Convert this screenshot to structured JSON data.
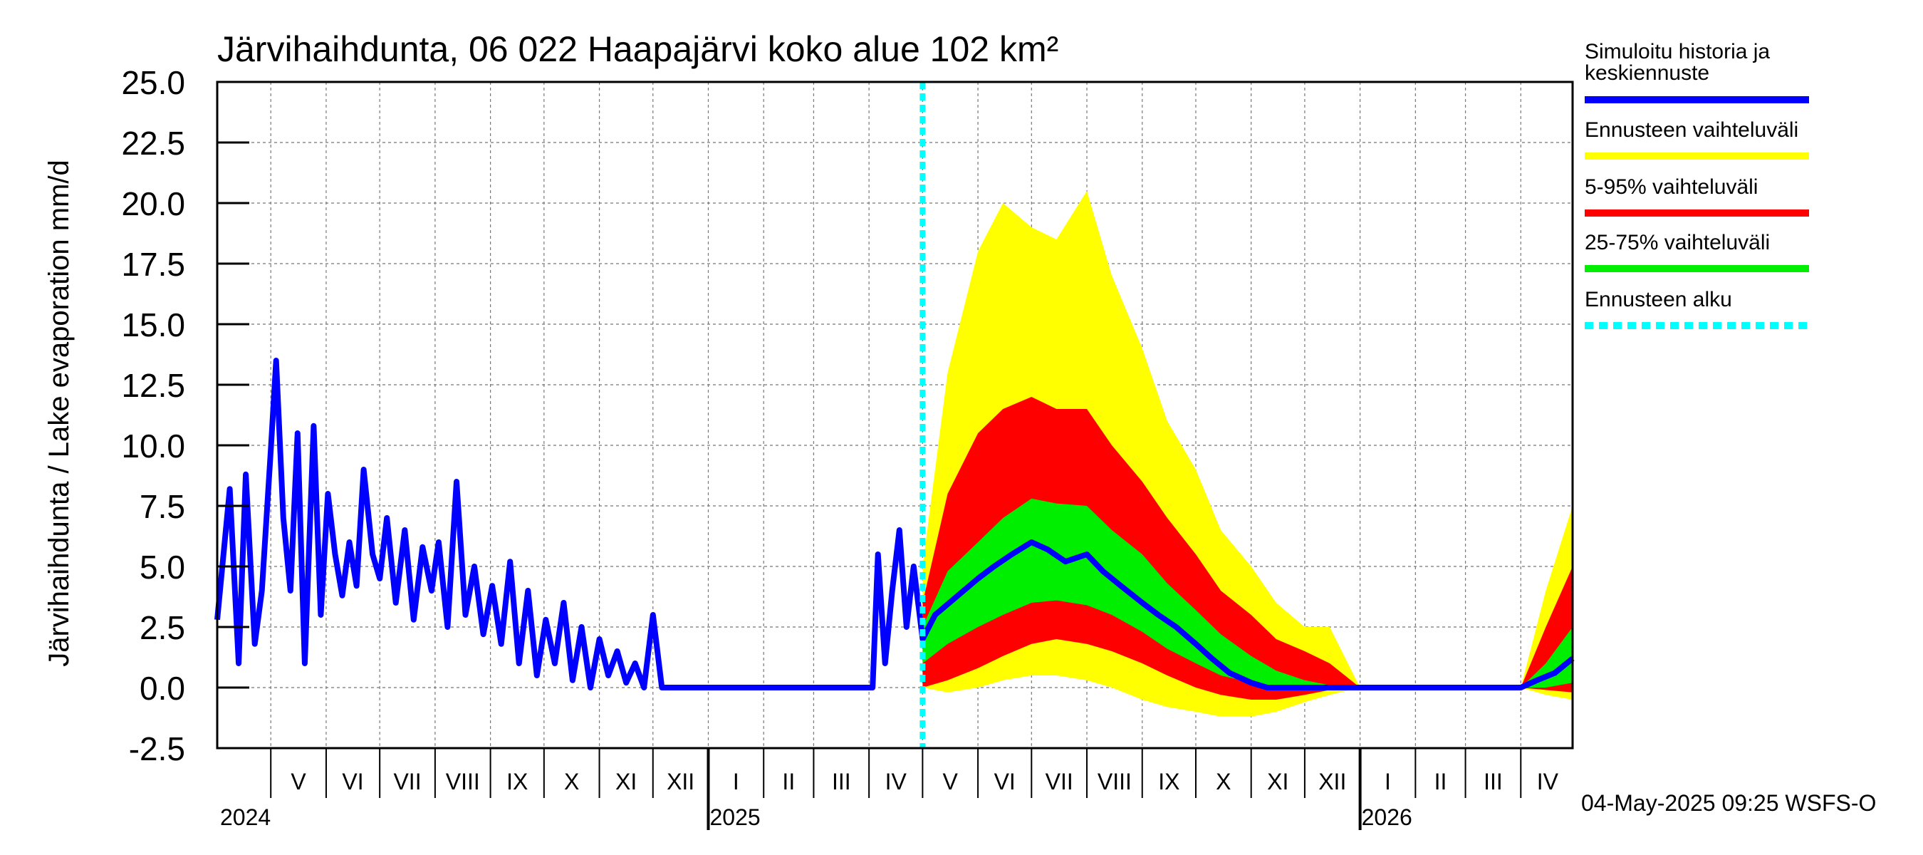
{
  "chart_data": {
    "type": "area",
    "title": "Järvihaihdunta, 06 022 Haapajärvi koko alue 102 km²",
    "ylabel": "Järvihaihdunta / Lake evaporation   mm/d",
    "xlabel": "",
    "ylim": [
      -2.5,
      25.0
    ],
    "yticks": [
      -2.5,
      0.0,
      2.5,
      5.0,
      7.5,
      10.0,
      12.5,
      15.0,
      17.5,
      20.0,
      22.5,
      25.0
    ],
    "ytick_labels": [
      "-2.5",
      "0.0",
      "2.5",
      "5.0",
      "7.5",
      "10.0",
      "12.5",
      "15.0",
      "17.5",
      "20.0",
      "22.5",
      "25.0"
    ],
    "xlim": [
      "2024-04-01",
      "2026-04-30"
    ],
    "month_labels": [
      {
        "label": "V",
        "start": "2024-05-01",
        "end": "2024-06-01"
      },
      {
        "label": "VI",
        "start": "2024-06-01",
        "end": "2024-07-01"
      },
      {
        "label": "VII",
        "start": "2024-07-01",
        "end": "2024-08-01"
      },
      {
        "label": "VIII",
        "start": "2024-08-01",
        "end": "2024-09-01"
      },
      {
        "label": "IX",
        "start": "2024-09-01",
        "end": "2024-10-01"
      },
      {
        "label": "X",
        "start": "2024-10-01",
        "end": "2024-11-01"
      },
      {
        "label": "XI",
        "start": "2024-11-01",
        "end": "2024-12-01"
      },
      {
        "label": "XII",
        "start": "2024-12-01",
        "end": "2025-01-01"
      },
      {
        "label": "I",
        "start": "2025-01-01",
        "end": "2025-02-01"
      },
      {
        "label": "II",
        "start": "2025-02-01",
        "end": "2025-03-01"
      },
      {
        "label": "III",
        "start": "2025-03-01",
        "end": "2025-04-01"
      },
      {
        "label": "IV",
        "start": "2025-04-01",
        "end": "2025-05-01"
      },
      {
        "label": "V",
        "start": "2025-05-01",
        "end": "2025-06-01"
      },
      {
        "label": "VI",
        "start": "2025-06-01",
        "end": "2025-07-01"
      },
      {
        "label": "VII",
        "start": "2025-07-01",
        "end": "2025-08-01"
      },
      {
        "label": "VIII",
        "start": "2025-08-01",
        "end": "2025-09-01"
      },
      {
        "label": "IX",
        "start": "2025-09-01",
        "end": "2025-10-01"
      },
      {
        "label": "X",
        "start": "2025-10-01",
        "end": "2025-11-01"
      },
      {
        "label": "XI",
        "start": "2025-11-01",
        "end": "2025-12-01"
      },
      {
        "label": "XII",
        "start": "2025-12-01",
        "end": "2026-01-01"
      },
      {
        "label": "I",
        "start": "2026-01-01",
        "end": "2026-02-01"
      },
      {
        "label": "II",
        "start": "2026-02-01",
        "end": "2026-03-01"
      },
      {
        "label": "III",
        "start": "2026-03-01",
        "end": "2026-04-01"
      },
      {
        "label": "IV",
        "start": "2026-04-01",
        "end": "2026-05-01"
      }
    ],
    "year_labels": [
      {
        "label": "2024",
        "date": "2024-04-01"
      },
      {
        "label": "2025",
        "date": "2025-01-01"
      },
      {
        "label": "2026",
        "date": "2026-01-01"
      }
    ],
    "forecast_start": "2025-05-01",
    "grid": true,
    "legend_position": "right",
    "legend": [
      {
        "label": "Simuloitu historia ja keskiennuste",
        "color": "#0000ff",
        "style": "solid"
      },
      {
        "label": "Ennusteen vaihteluväli",
        "color": "#ffff00",
        "style": "solid"
      },
      {
        "label": "5-95% vaihteluväli",
        "color": "#ff0000",
        "style": "solid"
      },
      {
        "label": "25-75% vaihteluväli",
        "color": "#00ee00",
        "style": "solid"
      },
      {
        "label": "Ennusteen alku",
        "color": "#00ffff",
        "style": "dashed"
      }
    ],
    "footer": "04-May-2025 09:25 WSFS-O",
    "colors": {
      "history": "#0000ff",
      "range_full": "#ffff00",
      "range_5_95": "#ff0000",
      "range_25_75": "#00ee00",
      "forecast_start": "#00ffff"
    },
    "series": [
      {
        "name": "Simuloitu historia ja keskiennuste",
        "x": [
          "2024-04-01",
          "2024-04-08",
          "2024-04-13",
          "2024-04-17",
          "2024-04-22",
          "2024-04-26",
          "2024-05-01",
          "2024-05-04",
          "2024-05-08",
          "2024-05-12",
          "2024-05-16",
          "2024-05-20",
          "2024-05-25",
          "2024-05-29",
          "2024-06-02",
          "2024-06-06",
          "2024-06-10",
          "2024-06-14",
          "2024-06-18",
          "2024-06-22",
          "2024-06-27",
          "2024-07-01",
          "2024-07-05",
          "2024-07-10",
          "2024-07-15",
          "2024-07-20",
          "2024-07-25",
          "2024-07-30",
          "2024-08-03",
          "2024-08-08",
          "2024-08-13",
          "2024-08-18",
          "2024-08-23",
          "2024-08-28",
          "2024-09-02",
          "2024-09-07",
          "2024-09-12",
          "2024-09-17",
          "2024-09-22",
          "2024-09-27",
          "2024-10-02",
          "2024-10-07",
          "2024-10-12",
          "2024-10-17",
          "2024-10-22",
          "2024-10-27",
          "2024-11-01",
          "2024-11-06",
          "2024-11-11",
          "2024-11-16",
          "2024-11-21",
          "2024-11-26",
          "2024-12-01",
          "2024-12-06",
          "2024-12-11",
          "2024-12-16",
          "2024-12-21",
          "2024-12-26",
          "2024-12-31",
          "2025-01-01",
          "2025-02-01",
          "2025-03-01",
          "2025-04-01",
          "2025-04-03",
          "2025-04-06",
          "2025-04-10",
          "2025-04-14",
          "2025-04-18",
          "2025-04-22",
          "2025-04-26",
          "2025-05-01",
          "2025-05-08",
          "2025-05-16",
          "2025-05-24",
          "2025-06-01",
          "2025-06-10",
          "2025-06-20",
          "2025-07-01",
          "2025-07-10",
          "2025-07-20",
          "2025-08-01",
          "2025-08-10",
          "2025-08-20",
          "2025-09-01",
          "2025-09-10",
          "2025-09-20",
          "2025-10-01",
          "2025-10-10",
          "2025-10-20",
          "2025-11-01",
          "2025-11-10",
          "2025-11-20",
          "2025-12-01",
          "2026-01-01",
          "2026-02-01",
          "2026-03-01",
          "2026-04-01",
          "2026-04-10",
          "2026-04-20",
          "2026-04-30"
        ],
        "y": [
          2.8,
          8.2,
          1.0,
          8.8,
          1.8,
          4.0,
          9.8,
          13.5,
          7.0,
          4.0,
          10.5,
          1.0,
          10.8,
          3.0,
          8.0,
          5.5,
          3.8,
          6.0,
          4.2,
          9.0,
          5.5,
          4.5,
          7.0,
          3.5,
          6.5,
          2.8,
          5.8,
          4.0,
          6.0,
          2.5,
          8.5,
          3.0,
          5.0,
          2.2,
          4.2,
          1.8,
          5.2,
          1.0,
          4.0,
          0.5,
          2.8,
          1.0,
          3.5,
          0.3,
          2.5,
          0.0,
          2.0,
          0.5,
          1.5,
          0.2,
          1.0,
          0.0,
          3.0,
          0.0,
          0.0,
          0.0,
          0.0,
          0.0,
          0.0,
          0.0,
          0.0,
          0.0,
          0.0,
          0.0,
          5.5,
          1.0,
          4.0,
          6.5,
          2.5,
          5.0,
          2.0,
          3.0,
          3.5,
          4.0,
          4.5,
          5.0,
          5.5,
          6.0,
          5.7,
          5.2,
          5.5,
          4.8,
          4.2,
          3.5,
          3.0,
          2.5,
          1.8,
          1.2,
          0.6,
          0.2,
          0.0,
          0.0,
          0.0,
          0.0,
          0.0,
          0.0,
          0.0,
          0.3,
          0.6,
          1.2
        ]
      },
      {
        "name": "Ennusteen vaihteluväli",
        "x": [
          "2025-05-01",
          "2025-05-15",
          "2025-06-01",
          "2025-06-15",
          "2025-07-01",
          "2025-07-15",
          "2025-08-01",
          "2025-08-15",
          "2025-09-01",
          "2025-09-15",
          "2025-10-01",
          "2025-10-15",
          "2025-11-01",
          "2025-11-15",
          "2025-12-01",
          "2025-12-15",
          "2026-01-01",
          "2026-02-01",
          "2026-03-01",
          "2026-04-01",
          "2026-04-15",
          "2026-04-30"
        ],
        "lower": [
          0.0,
          -0.2,
          0.0,
          0.3,
          0.5,
          0.5,
          0.3,
          0.0,
          -0.5,
          -0.8,
          -1.0,
          -1.2,
          -1.2,
          -1.0,
          -0.6,
          -0.3,
          0.0,
          0.0,
          0.0,
          0.0,
          -0.3,
          -0.5
        ],
        "upper": [
          5.0,
          13.0,
          18.0,
          20.0,
          19.0,
          18.5,
          20.5,
          17.0,
          14.0,
          11.0,
          9.0,
          6.5,
          5.0,
          3.5,
          2.5,
          2.5,
          0.0,
          0.0,
          0.0,
          0.0,
          4.0,
          7.5
        ]
      },
      {
        "name": "5-95% vaihteluväli",
        "x": [
          "2025-05-01",
          "2025-05-15",
          "2025-06-01",
          "2025-06-15",
          "2025-07-01",
          "2025-07-15",
          "2025-08-01",
          "2025-08-15",
          "2025-09-01",
          "2025-09-15",
          "2025-10-01",
          "2025-10-15",
          "2025-11-01",
          "2025-11-15",
          "2025-12-01",
          "2025-12-15",
          "2026-01-01",
          "2026-02-01",
          "2026-03-01",
          "2026-04-01",
          "2026-04-15",
          "2026-04-30"
        ],
        "lower": [
          0.0,
          0.3,
          0.8,
          1.3,
          1.8,
          2.0,
          1.8,
          1.5,
          1.0,
          0.5,
          0.0,
          -0.3,
          -0.5,
          -0.5,
          -0.3,
          -0.1,
          0.0,
          0.0,
          0.0,
          0.0,
          -0.1,
          -0.2
        ],
        "upper": [
          3.5,
          8.0,
          10.5,
          11.5,
          12.0,
          11.5,
          11.5,
          10.0,
          8.5,
          7.0,
          5.5,
          4.0,
          3.0,
          2.0,
          1.5,
          1.0,
          0.0,
          0.0,
          0.0,
          0.0,
          2.5,
          5.0
        ]
      },
      {
        "name": "25-75% vaihteluväli",
        "x": [
          "2025-05-01",
          "2025-05-15",
          "2025-06-01",
          "2025-06-15",
          "2025-07-01",
          "2025-07-15",
          "2025-08-01",
          "2025-08-15",
          "2025-09-01",
          "2025-09-15",
          "2025-10-01",
          "2025-10-15",
          "2025-11-01",
          "2025-11-15",
          "2025-12-01",
          "2025-12-15",
          "2026-01-01",
          "2026-02-01",
          "2026-03-01",
          "2026-04-01",
          "2026-04-15",
          "2026-04-30"
        ],
        "lower": [
          1.0,
          1.8,
          2.5,
          3.0,
          3.5,
          3.6,
          3.4,
          3.0,
          2.3,
          1.6,
          1.0,
          0.5,
          0.2,
          0.0,
          0.0,
          0.0,
          0.0,
          0.0,
          0.0,
          0.0,
          0.0,
          0.2
        ],
        "upper": [
          2.5,
          4.8,
          6.0,
          7.0,
          7.8,
          7.6,
          7.5,
          6.5,
          5.5,
          4.3,
          3.2,
          2.2,
          1.3,
          0.7,
          0.3,
          0.1,
          0.0,
          0.0,
          0.0,
          0.0,
          1.0,
          2.5
        ]
      }
    ]
  }
}
